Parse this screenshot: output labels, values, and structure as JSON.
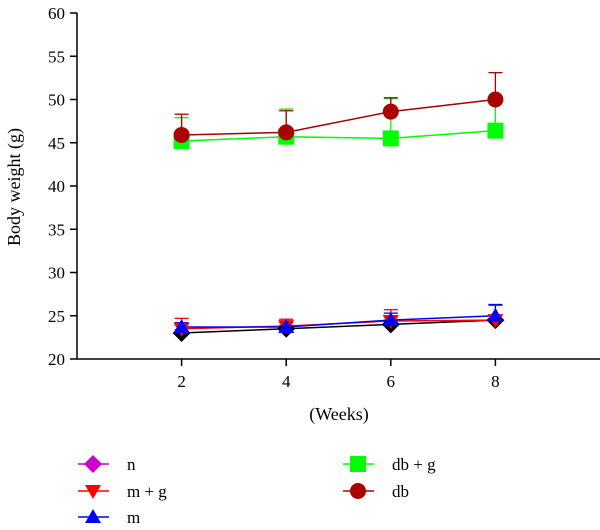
{
  "chart_data": {
    "type": "line",
    "xlabel": "(Weeks)",
    "ylabel": "Body weight (g)",
    "x": [
      2,
      4,
      6,
      8
    ],
    "xlim": [
      0,
      10
    ],
    "ylim": [
      20,
      60
    ],
    "xticks": [
      "2",
      "4",
      "6",
      "8"
    ],
    "yticks": [
      "20",
      "25",
      "30",
      "35",
      "40",
      "45",
      "50",
      "55",
      "60"
    ],
    "grid": false,
    "legend_position": "bottom",
    "series": [
      {
        "name": "n",
        "marker": "diamond",
        "color": "#cc00cc",
        "values": [
          23.0,
          23.5,
          24.0,
          24.5
        ],
        "errors": [
          0.4,
          0.4,
          0.5,
          0.5
        ]
      },
      {
        "name": "m + g",
        "marker": "triangle-down",
        "color": "#ff0000",
        "values": [
          23.5,
          23.8,
          24.4,
          24.5
        ],
        "errors": [
          1.2,
          0.8,
          1.3,
          1.7
        ]
      },
      {
        "name": "m",
        "marker": "triangle-up",
        "color": "#0000ff",
        "values": [
          23.7,
          23.7,
          24.5,
          25.0
        ],
        "errors": [
          0.5,
          0.5,
          0.8,
          1.3
        ]
      },
      {
        "name": "db + g",
        "marker": "square",
        "color": "#00ff00",
        "values": [
          45.2,
          45.7,
          45.5,
          46.4
        ],
        "errors": [
          2.7,
          3.2,
          4.6,
          4.0
        ]
      },
      {
        "name": "db",
        "marker": "circle",
        "color": "#aa0000",
        "values": [
          45.9,
          46.2,
          48.6,
          50.0
        ],
        "errors": [
          2.4,
          2.5,
          1.6,
          3.1
        ]
      }
    ]
  }
}
